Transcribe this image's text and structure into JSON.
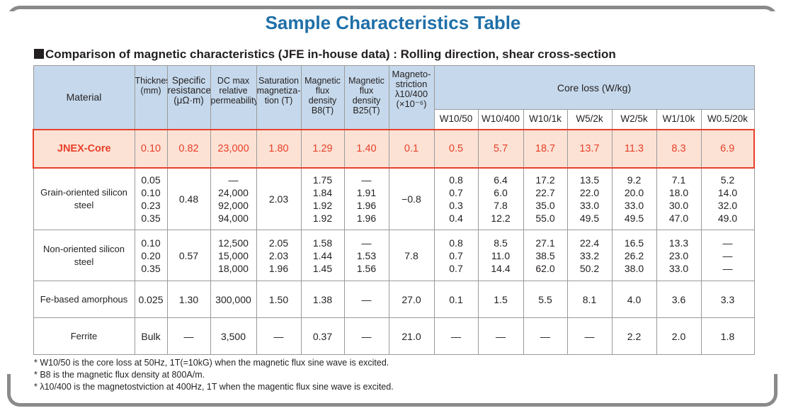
{
  "title": "Sample Characteristics Table",
  "subtitle": "Comparison of magnetic characteristics (JFE in-house data) : Rolling direction, shear cross-section",
  "headers": {
    "material": "Material",
    "thickness": [
      "Thickness",
      "(mm)"
    ],
    "resistance": [
      "Specific",
      "resistance",
      "(μΩ·m)"
    ],
    "permeability": [
      "DC max",
      "relative",
      "permeability"
    ],
    "saturation": [
      "Saturation",
      "magnetiza-",
      "tion (T)"
    ],
    "b8": [
      "Magnetic",
      "flux density",
      "B8(T)"
    ],
    "b25": [
      "Magnetic",
      "flux density",
      "B25(T)"
    ],
    "magnetostriction": [
      "Magneto-",
      "striction",
      "λ10/400",
      "(×10⁻⁶)"
    ],
    "core_loss": "Core loss (W/kg)",
    "core_loss_cols": [
      "W10/50",
      "W10/400",
      "W10/1k",
      "W5/2k",
      "W2/5k",
      "W1/10k",
      "W0.5/20k"
    ]
  },
  "rows": [
    {
      "material": "JNEX-Core",
      "cells": [
        "0.10",
        "0.82",
        "23,000",
        "1.80",
        "1.29",
        "1.40",
        "0.1",
        "0.5",
        "5.7",
        "18.7",
        "13.7",
        "11.3",
        "8.3",
        "6.9"
      ]
    },
    {
      "material": "Grain-oriented silicon steel",
      "cells": [
        "0.05\n0.10\n0.23\n0.35",
        "0.48",
        "—\n24,000\n92,000\n94,000",
        "2.03",
        "1.75\n1.84\n1.92\n1.92",
        "—\n1.91\n1.96\n1.96",
        "−0.8",
        "0.8\n0.7\n0.3\n0.4",
        "6.4\n6.0\n7.8\n12.2",
        "17.2\n22.7\n35.0\n55.0",
        "13.5\n22.0\n33.0\n49.5",
        "9.2\n20.0\n33.0\n49.5",
        "7.1\n18.0\n30.0\n47.0",
        "5.2\n14.0\n32.0\n49.0"
      ]
    },
    {
      "material": "Non-oriented silicon steel",
      "cells": [
        "0.10\n0.20\n0.35",
        "0.57",
        "12,500\n15,000\n18,000",
        "2.05\n2.03\n1.96",
        "1.58\n1.44\n1.45",
        "—\n1.53\n1.56",
        "7.8",
        "0.8\n0.7\n0.7",
        "8.5\n11.0\n14.4",
        "27.1\n38.5\n62.0",
        "22.4\n33.2\n50.2",
        "16.5\n26.2\n38.0",
        "13.3\n23.0\n33.0",
        "—\n—\n—"
      ]
    },
    {
      "material": "Fe-based amorphous",
      "cells": [
        "0.025",
        "1.30",
        "300,000",
        "1.50",
        "1.38",
        "—",
        "27.0",
        "0.1",
        "1.5",
        "5.5",
        "8.1",
        "4.0",
        "3.6",
        "3.3"
      ]
    },
    {
      "material": "Ferrite",
      "cells": [
        "Bulk",
        "—",
        "3,500",
        "—",
        "0.37",
        "—",
        "21.0",
        "—",
        "—",
        "—",
        "—",
        "2.2",
        "2.0",
        "1.8"
      ]
    }
  ],
  "notes": [
    "* W10/50 is the core loss at 50Hz, 1T(=10kG) when the magnetic flux sine wave is excited.",
    "* B8 is the magnetic flux density at 800A/m.",
    "* λ10/400 is the magnetostviction at 400Hz, 1T when the magentic flux sine wave is excited."
  ]
}
